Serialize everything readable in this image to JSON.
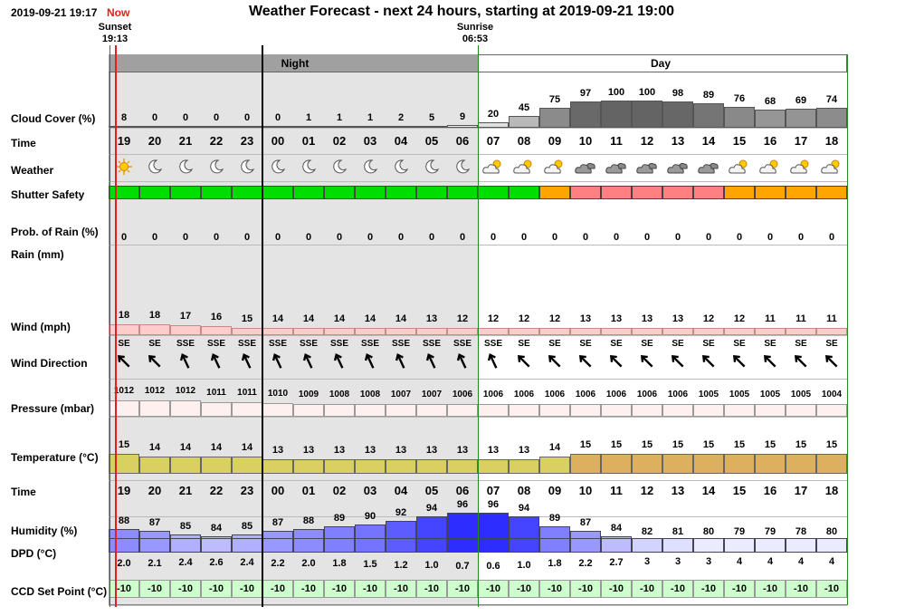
{
  "header": {
    "datetime": "2019-09-21 19:17",
    "now_label": "Now",
    "title": "Weather Forecast - next 24 hours, starting at 2019-09-21 19:00"
  },
  "sun": {
    "sunset_label": "Sunset",
    "sunset_time": "19:13",
    "sunrise_label": "Sunrise",
    "sunrise_time": "06:53"
  },
  "periods": {
    "night": "Night",
    "day": "Day"
  },
  "labels": {
    "cloud": "Cloud Cover (%)",
    "time": "Time",
    "weather": "Weather",
    "shutter": "Shutter Safety",
    "rain_prob": "Prob. of Rain (%)",
    "rain": "Rain (mm)",
    "wind": "Wind (mph)",
    "wind_dir": "Wind Direction",
    "pressure": "Pressure (mbar)",
    "temperature": "Temperature (°C)",
    "time2": "Time",
    "humidity": "Humidity (%)",
    "dpd": "DPD (°C)",
    "ccd": "CCD Set Point (°C)"
  },
  "hours": [
    "19",
    "20",
    "21",
    "22",
    "23",
    "00",
    "01",
    "02",
    "03",
    "04",
    "05",
    "06",
    "07",
    "08",
    "09",
    "10",
    "11",
    "12",
    "13",
    "14",
    "15",
    "16",
    "17",
    "18"
  ],
  "cloud_cover": [
    "8",
    "0",
    "0",
    "0",
    "0",
    "0",
    "1",
    "1",
    "1",
    "2",
    "5",
    "9",
    "20",
    "45",
    "75",
    "97",
    "100",
    "100",
    "98",
    "89",
    "76",
    "68",
    "69",
    "74"
  ],
  "weather_icons": [
    "sun-icon",
    "moon-icon",
    "moon-icon",
    "moon-icon",
    "moon-icon",
    "moon-icon",
    "moon-icon",
    "moon-icon",
    "moon-icon",
    "moon-icon",
    "moon-icon",
    "moon-icon",
    "partly-cloudy-icon",
    "partly-cloudy-icon",
    "partly-cloudy-icon",
    "cloudy-icon",
    "cloudy-icon",
    "cloudy-icon",
    "cloudy-icon",
    "cloudy-icon",
    "partly-cloudy-icon",
    "partly-cloudy-icon",
    "partly-cloudy-icon",
    "partly-cloudy-icon"
  ],
  "shutter_safety": [
    "safe",
    "safe",
    "safe",
    "safe",
    "safe",
    "safe",
    "safe",
    "safe",
    "safe",
    "safe",
    "safe",
    "safe",
    "safe",
    "safe",
    "caution",
    "unsafe",
    "unsafe",
    "unsafe",
    "unsafe",
    "unsafe",
    "caution",
    "caution",
    "caution",
    "caution"
  ],
  "shutter_colors": {
    "safe": "#00dd00",
    "caution": "#ffa500",
    "unsafe": "#ff8080"
  },
  "rain_prob": [
    "0",
    "0",
    "0",
    "0",
    "0",
    "0",
    "0",
    "0",
    "0",
    "0",
    "0",
    "0",
    "0",
    "0",
    "0",
    "0",
    "0",
    "0",
    "0",
    "0",
    "0",
    "0",
    "0",
    "0"
  ],
  "wind_speed": [
    "18",
    "18",
    "17",
    "16",
    "15",
    "14",
    "14",
    "14",
    "14",
    "14",
    "13",
    "12",
    "12",
    "12",
    "12",
    "13",
    "13",
    "13",
    "13",
    "12",
    "12",
    "11",
    "11",
    "11"
  ],
  "wind_dir": [
    "SE",
    "SE",
    "SSE",
    "SSE",
    "SSE",
    "SSE",
    "SSE",
    "SSE",
    "SSE",
    "SSE",
    "SSE",
    "SSE",
    "SSE",
    "SE",
    "SE",
    "SE",
    "SE",
    "SE",
    "SE",
    "SE",
    "SE",
    "SE",
    "SE",
    "SE"
  ],
  "pressure": [
    "1012",
    "1012",
    "1012",
    "1011",
    "1011",
    "1010",
    "1009",
    "1008",
    "1008",
    "1007",
    "1007",
    "1006",
    "1006",
    "1006",
    "1006",
    "1006",
    "1006",
    "1006",
    "1006",
    "1005",
    "1005",
    "1005",
    "1005",
    "1004"
  ],
  "temperature": [
    "15",
    "14",
    "14",
    "14",
    "14",
    "13",
    "13",
    "13",
    "13",
    "13",
    "13",
    "13",
    "13",
    "13",
    "14",
    "15",
    "15",
    "15",
    "15",
    "15",
    "15",
    "15",
    "15",
    "15"
  ],
  "humidity": [
    "88",
    "87",
    "85",
    "84",
    "85",
    "87",
    "88",
    "89",
    "90",
    "92",
    "94",
    "96",
    "96",
    "94",
    "89",
    "87",
    "84",
    "82",
    "81",
    "80",
    "79",
    "79",
    "78",
    "80"
  ],
  "dpd": [
    "2.0",
    "2.1",
    "2.4",
    "2.6",
    "2.4",
    "2.2",
    "2.0",
    "1.8",
    "1.5",
    "1.2",
    "1.0",
    "0.7",
    "0.6",
    "1.0",
    "1.8",
    "2.2",
    "2.7",
    "3",
    "3",
    "3",
    "4",
    "4",
    "4",
    "4"
  ],
  "ccd_set_point": [
    "-10",
    "-10",
    "-10",
    "-10",
    "-10",
    "-10",
    "-10",
    "-10",
    "-10",
    "-10",
    "-10",
    "-10",
    "-10",
    "-10",
    "-10",
    "-10",
    "-10",
    "-10",
    "-10",
    "-10",
    "-10",
    "-10",
    "-10",
    "-10"
  ],
  "colors": {
    "night_bg": "#e4e4e4",
    "period_bar": "#a0a0a0",
    "shutter_safe": "#00dd00",
    "now_line": "#e0201e",
    "sun_line": "#1f8a1f",
    "wind_bar": "#ffcccc",
    "pressure_bar": "#fff0f0",
    "temp_night": "#d8d060",
    "temp_day": "#ddb060",
    "ccd_bg": "#ccffcc"
  }
}
